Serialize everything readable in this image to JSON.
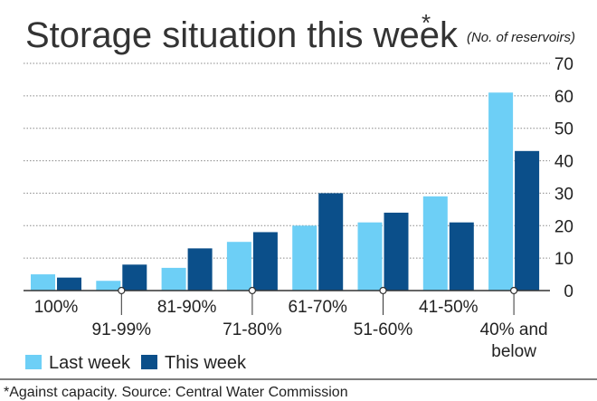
{
  "chart_data": {
    "type": "bar",
    "title": "Storage situation this week",
    "title_marker": "*",
    "unit_note": "(No. of reservoirs)",
    "categories": [
      "100%",
      "91-99%",
      "81-90%",
      "71-80%",
      "61-70%",
      "51-60%",
      "41-50%",
      "40% and below"
    ],
    "category_label_lines": [
      [
        "100%"
      ],
      [
        "91-99%"
      ],
      [
        "81-90%"
      ],
      [
        "71-80%"
      ],
      [
        "61-70%"
      ],
      [
        "51-60%"
      ],
      [
        "41-50%"
      ],
      [
        "40% and",
        "below"
      ]
    ],
    "series": [
      {
        "name": "Last week",
        "values": [
          5,
          3,
          7,
          15,
          20,
          21,
          29,
          61
        ]
      },
      {
        "name": "This week",
        "values": [
          4,
          8,
          13,
          18,
          30,
          24,
          21,
          43
        ]
      }
    ],
    "y_ticks": [
      0,
      10,
      20,
      30,
      40,
      50,
      60,
      70
    ],
    "ylim": [
      0,
      70
    ],
    "grid": true,
    "legend_placement": "bottom-left",
    "footnote": "*Against capacity. Source: Central Water Commission",
    "colors": {
      "last_week": "#6dcff6",
      "this_week": "#0b4f8a",
      "grid": "#8a8a8a",
      "text": "#222222"
    }
  }
}
